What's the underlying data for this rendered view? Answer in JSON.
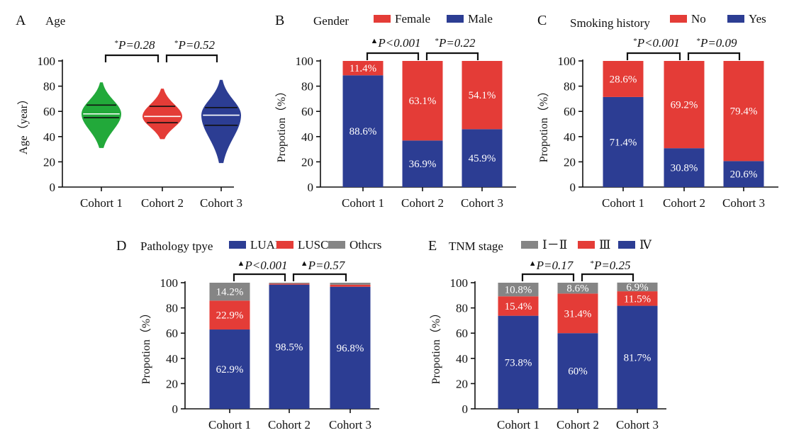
{
  "colors": {
    "green": "#22a93a",
    "red": "#e43c37",
    "blue": "#2c3d93",
    "grey": "#858585"
  },
  "chart_data": [
    {
      "panel": "A",
      "type": "violin",
      "title": "Age",
      "ylabel": "Age（year）",
      "ylim": [
        0,
        100
      ],
      "yticks": [
        "0",
        "20",
        "40",
        "60",
        "80",
        "100"
      ],
      "categories": [
        "Cohort 1",
        "Cohort 2",
        "Cohort 3"
      ],
      "colors": [
        "#22a93a",
        "#e43c37",
        "#2c3d93"
      ],
      "distributions": [
        {
          "name": "Cohort 1",
          "min": 31,
          "max": 83,
          "median": 58,
          "q1": 55,
          "q3": 65
        },
        {
          "name": "Cohort 2",
          "min": 38,
          "max": 78,
          "median": 56,
          "q1": 51,
          "q3": 64
        },
        {
          "name": "Cohort 3",
          "min": 19,
          "max": 85,
          "median": 57,
          "q1": 49,
          "q3": 63
        }
      ],
      "comparisons": [
        {
          "from": 0,
          "to": 1,
          "marker": "*",
          "label": "P=0.28"
        },
        {
          "from": 1,
          "to": 2,
          "marker": "*",
          "label": "P=0.52"
        }
      ]
    },
    {
      "panel": "B",
      "type": "stacked-bar",
      "title": "Gender",
      "ylabel": "Propotion（%）",
      "ylim": [
        0,
        100
      ],
      "yticks": [
        "0",
        "20",
        "40",
        "60",
        "80",
        "100"
      ],
      "categories": [
        "Cohort 1",
        "Cohort 2",
        "Cohort 3"
      ],
      "series": [
        {
          "name": "Male",
          "color": "#2c3d93",
          "values": [
            88.6,
            36.9,
            45.9
          ],
          "labels": [
            "88.6%",
            "36.9%",
            "45.9%"
          ]
        },
        {
          "name": "Female",
          "color": "#e43c37",
          "values": [
            11.4,
            63.1,
            54.1
          ],
          "labels": [
            "11.4%",
            "63.1%",
            "54.1%"
          ]
        }
      ],
      "legend": [
        {
          "name": "Female",
          "color": "#e43c37"
        },
        {
          "name": "Male",
          "color": "#2c3d93"
        }
      ],
      "comparisons": [
        {
          "from": 0,
          "to": 1,
          "marker": "▲",
          "label": "P<0.001"
        },
        {
          "from": 1,
          "to": 2,
          "marker": "*",
          "label": "P=0.22"
        }
      ]
    },
    {
      "panel": "C",
      "type": "stacked-bar",
      "title": "Smoking history",
      "ylabel": "Propotion（%）",
      "ylim": [
        0,
        100
      ],
      "yticks": [
        "0",
        "20",
        "40",
        "60",
        "80",
        "100"
      ],
      "categories": [
        "Cohort 1",
        "Cohort 2",
        "Cohort 3"
      ],
      "series": [
        {
          "name": "Yes",
          "color": "#2c3d93",
          "values": [
            71.4,
            30.8,
            20.6
          ],
          "labels": [
            "71.4%",
            "30.8%",
            "20.6%"
          ]
        },
        {
          "name": "No",
          "color": "#e43c37",
          "values": [
            28.6,
            69.2,
            79.4
          ],
          "labels": [
            "28.6%",
            "69.2%",
            "79.4%"
          ]
        }
      ],
      "legend": [
        {
          "name": "No",
          "color": "#e43c37"
        },
        {
          "name": "Yes",
          "color": "#2c3d93"
        }
      ],
      "comparisons": [
        {
          "from": 0,
          "to": 1,
          "marker": "*",
          "label": "P<0.001"
        },
        {
          "from": 1,
          "to": 2,
          "marker": "*",
          "label": "P=0.09"
        }
      ]
    },
    {
      "panel": "D",
      "type": "stacked-bar",
      "title": "Pathology tpye",
      "ylabel": "Propotion（%）",
      "ylim": [
        0,
        100
      ],
      "yticks": [
        "0",
        "20",
        "40",
        "60",
        "80",
        "100"
      ],
      "categories": [
        "Cohort 1",
        "Cohort 2",
        "Cohort 3"
      ],
      "series": [
        {
          "name": "LUAD",
          "color": "#2c3d93",
          "values": [
            62.9,
            98.5,
            96.8
          ],
          "labels": [
            "62.9%",
            "98.5%",
            "96.8%"
          ]
        },
        {
          "name": "LUSC",
          "color": "#e43c37",
          "values": [
            22.9,
            0.8,
            1.6
          ],
          "labels": [
            "22.9%",
            "",
            ""
          ]
        },
        {
          "name": "Othcrs",
          "color": "#858585",
          "values": [
            14.2,
            0.7,
            1.6
          ],
          "labels": [
            "14.2%",
            "",
            ""
          ]
        }
      ],
      "legend": [
        {
          "name": "LUAD",
          "color": "#2c3d93"
        },
        {
          "name": "LUSC",
          "color": "#e43c37"
        },
        {
          "name": "Othcrs",
          "color": "#858585"
        }
      ],
      "comparisons": [
        {
          "from": 0,
          "to": 1,
          "marker": "▲",
          "label": "P<0.001"
        },
        {
          "from": 1,
          "to": 2,
          "marker": "▲",
          "label": "P=0.57"
        }
      ]
    },
    {
      "panel": "E",
      "type": "stacked-bar",
      "title": "TNM stage",
      "ylabel": "Propotion（%）",
      "ylim": [
        0,
        100
      ],
      "yticks": [
        "0",
        "20",
        "40",
        "60",
        "80",
        "100"
      ],
      "categories": [
        "Cohort 1",
        "Cohort 2",
        "Cohort 3"
      ],
      "series": [
        {
          "name": "Ⅳ",
          "color": "#2c3d93",
          "values": [
            73.8,
            60,
            81.7
          ],
          "labels": [
            "73.8%",
            "60%",
            "81.7%"
          ]
        },
        {
          "name": "Ⅲ",
          "color": "#e43c37",
          "values": [
            15.4,
            31.4,
            11.5
          ],
          "labels": [
            "15.4%",
            "31.4%",
            "11.5%"
          ]
        },
        {
          "name": "Ⅰ－Ⅱ",
          "color": "#858585",
          "values": [
            10.8,
            8.6,
            6.9
          ],
          "labels": [
            "10.8%",
            "8.6%",
            "6.9%"
          ]
        }
      ],
      "legend": [
        {
          "name": "Ⅰ－Ⅱ",
          "color": "#858585"
        },
        {
          "name": "Ⅲ",
          "color": "#e43c37"
        },
        {
          "name": "Ⅳ",
          "color": "#2c3d93"
        }
      ],
      "comparisons": [
        {
          "from": 0,
          "to": 1,
          "marker": "▲",
          "label": "P=0.17"
        },
        {
          "from": 1,
          "to": 2,
          "marker": "*",
          "label": "P=0.25"
        }
      ]
    }
  ]
}
